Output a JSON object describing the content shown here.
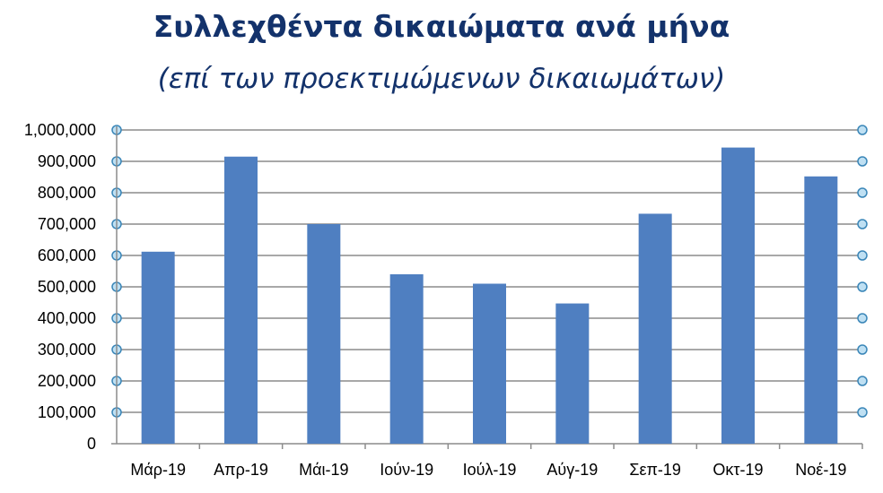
{
  "chart_data": {
    "type": "bar",
    "title": "Συλλεχθέντα δικαιώματα ανά μήνα",
    "subtitle": "(επί των προεκτιμώμενων δικαιωμάτων)",
    "categories": [
      "Μάρ-19",
      "Απρ-19",
      "Μάι-19",
      "Ιούν-19",
      "Ιούλ-19",
      "Αύγ-19",
      "Σεπ-19",
      "Οκτ-19",
      "Νοέ-19"
    ],
    "values": [
      612000,
      915000,
      700000,
      540000,
      510000,
      447000,
      733000,
      944000,
      852000
    ],
    "ylim": [
      0,
      1000000
    ],
    "yticks": [
      "0",
      "100,000",
      "200,000",
      "300,000",
      "400,000",
      "500,000",
      "600,000",
      "700,000",
      "800,000",
      "900,000",
      "1,000,000"
    ],
    "grid": true,
    "bar_color": "#4f7fc1",
    "grid_color": "#8c8c8c"
  }
}
